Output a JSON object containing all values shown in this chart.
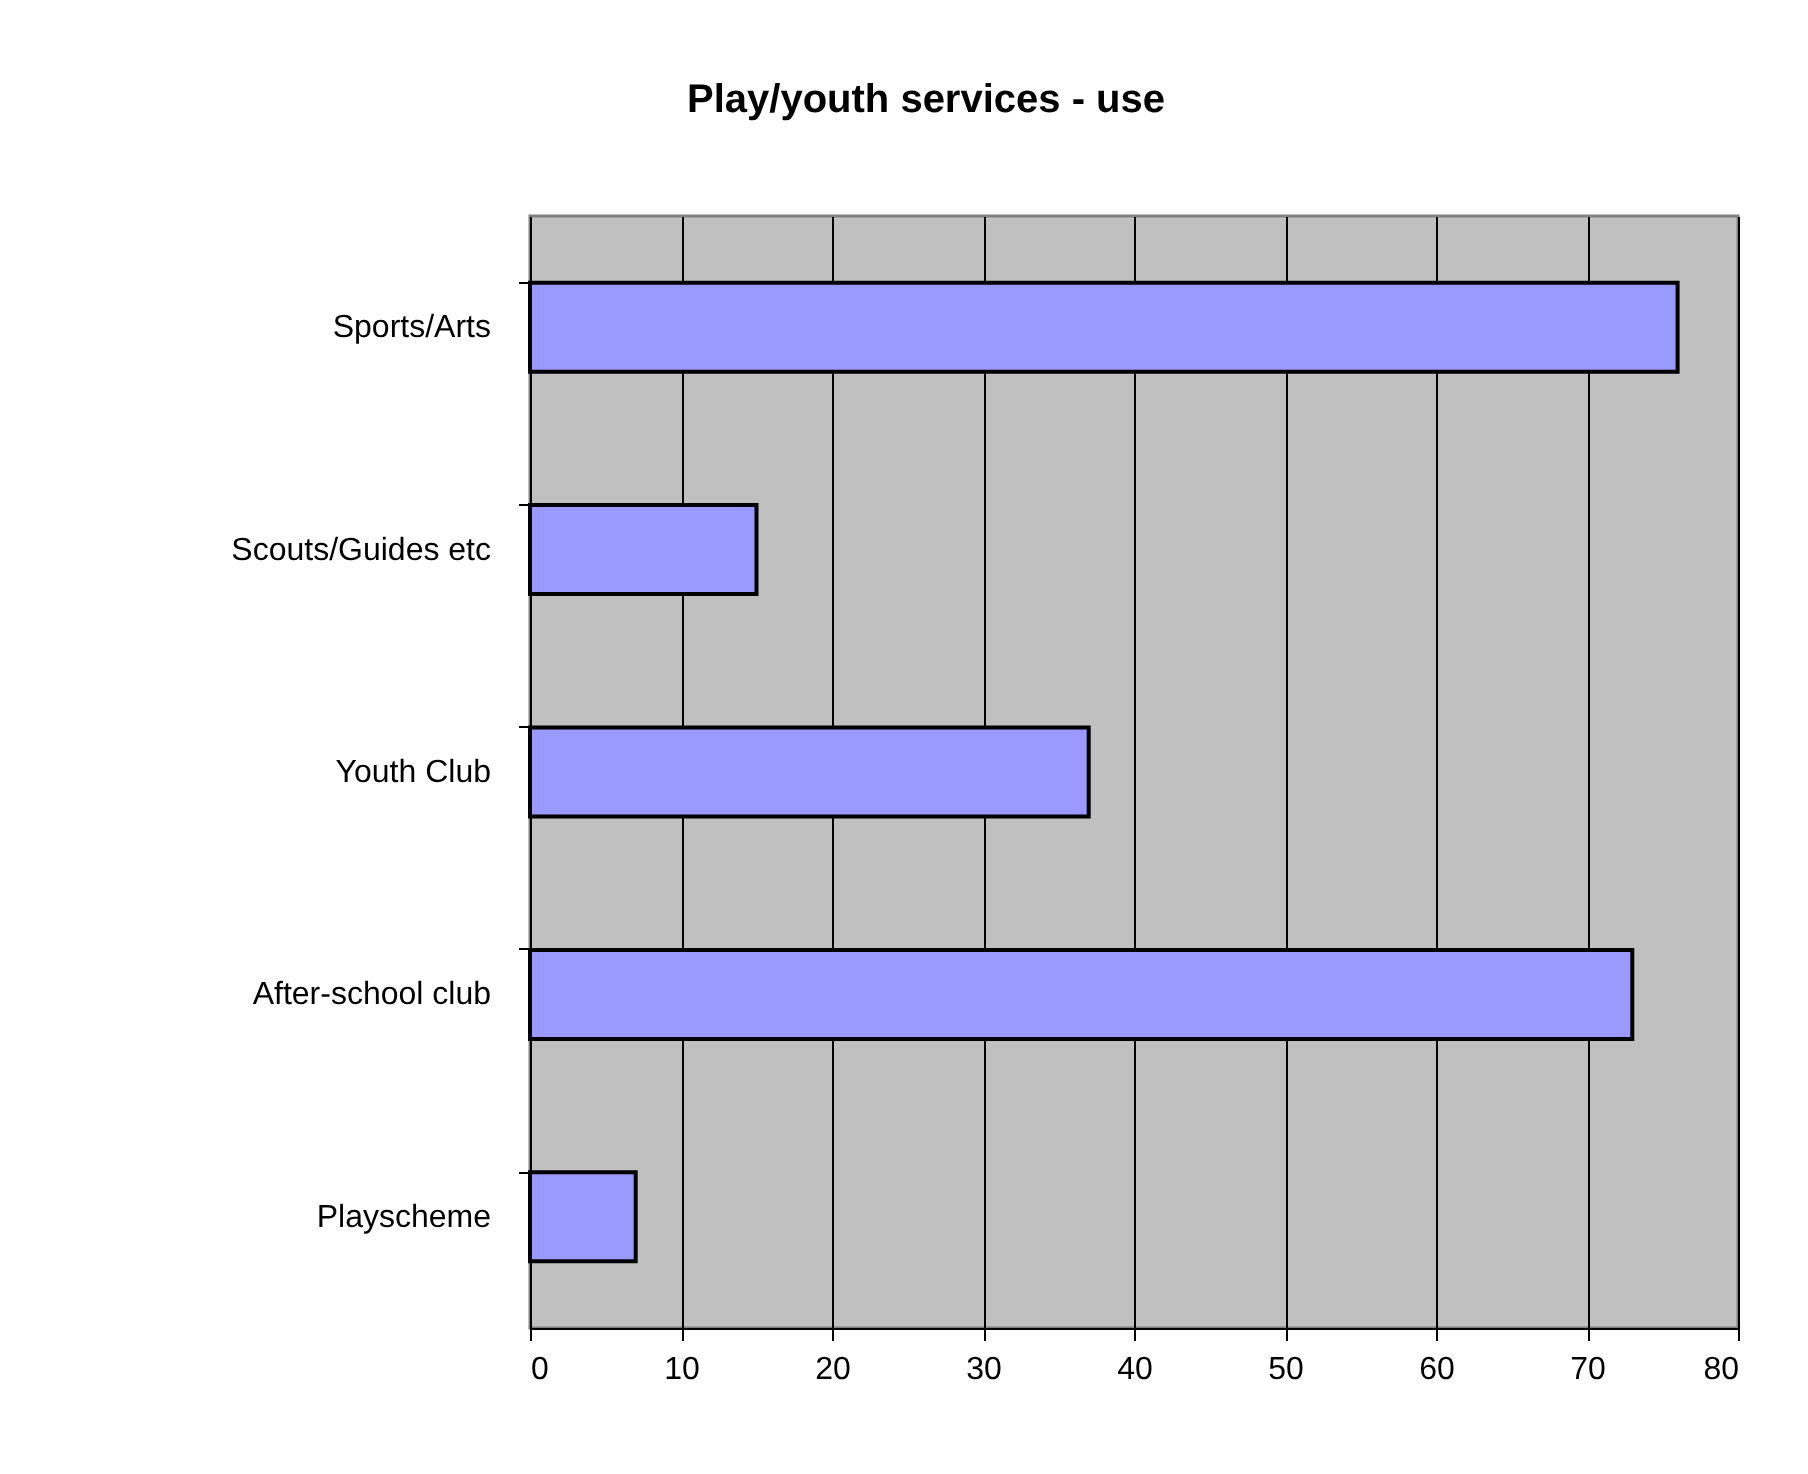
{
  "chart_data": {
    "type": "bar",
    "orientation": "horizontal",
    "title": "Play/youth services - use",
    "categories": [
      "Sports/Arts",
      "Scouts/Guides etc",
      "Youth Club",
      "After-school club",
      "Playscheme"
    ],
    "values": [
      76,
      15,
      37,
      73,
      7
    ],
    "color": "#9999ff",
    "xlim": [
      0,
      80
    ],
    "xticks": [
      0,
      10,
      20,
      30,
      40,
      50,
      60,
      70,
      80
    ],
    "grid": "x"
  }
}
